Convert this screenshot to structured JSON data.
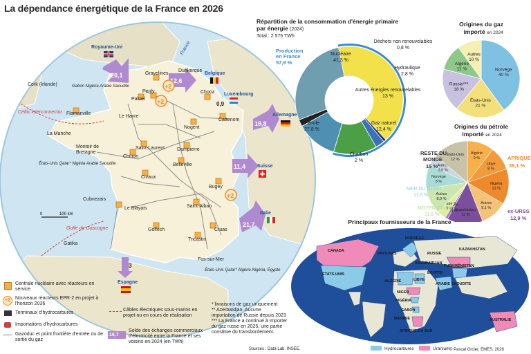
{
  "title": "La dépendance énergétique de la France en 2026",
  "primary": {
    "heading_line1": "Répartition de la consommation d'énergie primaire",
    "heading_line2": "par énergie",
    "year": "(2024)",
    "total": "Total : 2 575 TWh",
    "production_label_1": "Production",
    "production_label_2": "en France",
    "production_value": "57,9 %"
  },
  "chart_data": [
    {
      "type": "pie",
      "title": "Répartition de la consommation d'énergie primaire par énergie (2024)",
      "labels": [
        "Nucléaire",
        "Déchets non renouvelables",
        "Hydraulique",
        "Autres énergies renouvelables",
        "Gaz naturel",
        "Charbon",
        "Pétrole"
      ],
      "values": [
        41.3,
        0.8,
        2.8,
        13,
        12.4,
        2,
        27.8
      ],
      "value_labels": [
        "41,3 %",
        "0,8 %",
        "2,8 %",
        "13 %",
        "12,4 %",
        "2 %",
        "27,8 %"
      ],
      "colors": [
        "#f2e14a",
        "#1f2f6e",
        "#3a72b8",
        "#4c9f45",
        "#4f90b2",
        "#222222",
        "#6f9eb0"
      ]
    },
    {
      "type": "pie",
      "title": "Origines du gaz importé en 2024",
      "labels": [
        "Norvège",
        "États-Unis",
        "Russie***",
        "Algérie",
        "Autres"
      ],
      "values": [
        40,
        21,
        18,
        11,
        10
      ],
      "value_labels": [
        "40 %",
        "21 %",
        "18 %",
        "11 %",
        "10 %"
      ],
      "colors": [
        "#7fc1e2",
        "#f4e07a",
        "#c8c1e0",
        "#8fc98a",
        "#f6efb2"
      ]
    },
    {
      "type": "pie",
      "title": "Origines du pétrole importé en 2024",
      "labels": [
        "Algérie",
        "Libye",
        "Nigéria",
        "Autres",
        "Kazakhstan",
        "Azerbaïdjan**",
        "Arabie S.",
        "Autres",
        "Norvège",
        "Autres",
        "États-Unis"
      ],
      "values": [
        9,
        8,
        12,
        9.1,
        12,
        0.9,
        3,
        8.9,
        8,
        3.6,
        12
      ],
      "value_labels": [
        "9 %",
        "8 %",
        "12 %",
        "9,1 %",
        "12 %",
        "0,9 %",
        "3 %",
        "8,9 %",
        "8 %",
        "3,6 %",
        "12 %"
      ],
      "colors": [
        "#f7b04a",
        "#f39a3a",
        "#ee8a2c",
        "#f5c27a",
        "#7a4f9e",
        "#a27cc4",
        "#dcef9c",
        "#cbe6b0",
        "#a9dcd4",
        "#c9d6e2",
        "#c7c2a8"
      ]
    }
  ],
  "gas": {
    "heading_1": "Origines du gaz",
    "heading_2": "importé",
    "year": "en 2024"
  },
  "oil": {
    "heading_1": "Origines du pétrole",
    "heading_2": "importé",
    "year": "en 2024",
    "reste_1": "RESTE DU",
    "reste_2": "MONDE",
    "reste_val": "15 %",
    "afrique": "AFRIQUE",
    "afrique_val": "38,1 %",
    "mer_du_nord": "MER DU NORD",
    "mer_du_nord_val": "11,6 %",
    "moyen_orient": "MOYEN-ORIENT",
    "moyen_orient_val": "11,9 %",
    "ex_urss": "ex-URSS",
    "ex_urss_val": "12,9 %",
    "labels": [
      "Algérie",
      "Libye",
      "Nigéria",
      "Autres",
      "Kazakhstan",
      "Azer.**",
      "Arabie S.",
      "Autres",
      "Norvège",
      "Autres",
      "États-Unis"
    ]
  },
  "map": {
    "countries": [
      "Royaume-Uni",
      "Belgique",
      "Luxembourg",
      "Allemagne",
      "Suisse",
      "Italie",
      "Espagne"
    ],
    "flows": [
      {
        "value": "20,1",
        "color": "#b08ad0"
      },
      {
        "value": "12,6",
        "color": "#b08ad0"
      },
      {
        "value": "0,9",
        "color": "#b08ad0"
      },
      {
        "value": "19,8",
        "color": "#b08ad0"
      },
      {
        "value": "11,4",
        "color": "#b08ad0"
      },
      {
        "value": "21,7",
        "color": "#b08ad0"
      },
      {
        "value": "3",
        "color": "#b08ad0"
      }
    ],
    "new_reactors": [
      "+2",
      "+2",
      "+2"
    ],
    "plants": [
      "Gravelines",
      "Penly",
      "Paluel",
      "Flamanville",
      "Chooz",
      "Cattenom",
      "Nogent",
      "Saint-Laurent",
      "Dampierre",
      "Chinon",
      "Belleville",
      "Civaux",
      "Bugey",
      "Saint-Alban",
      "Le Blayais",
      "Golfech",
      "Cruas",
      "Tricastin"
    ],
    "terminals": [
      "Dunkerque",
      "Le Havre",
      "Montoir de Bretagne",
      "Fos-sur-Mer"
    ],
    "places": [
      "La Manche",
      "Cork (Irlande)",
      "Celtic interconnector",
      "Golfe de Gascogne",
      "Gatika",
      "Cubnezais",
      "France"
    ],
    "lng_notes": {
      "north": "Gabon Nigéria Arabie Saoudite",
      "west": "États-Unis Qatar* Nigéria Arabie Saoudite",
      "south": "États-Unis Qatar* Algérie Nigéria, Égypte"
    },
    "scale_0": "0",
    "scale_100": "100 km"
  },
  "legend": [
    "Centrale nucléaire avec réacteurs en service",
    "Nouveaux réacteurs EPR-2 en projet à l'horizon 2036",
    "Terminaux d'hydrocarbures",
    "Importations d'hydrocarbures",
    "Gazoduc et point frontière d'entrée ou de sortie du gaz",
    "Câbles électriques sous-marins en projet ou en cours de réalisation",
    "Solde des échanges commerciaux d'électricité entre la France et ses voisins en 2024 (en TWh)"
  ],
  "legend_plus": "+2",
  "legend_flow": "16,7",
  "notes": {
    "n1": "* livraisons de gaz uniquement",
    "n2": "** Azerbaïdjan. Aucune",
    "n3": "importation de Russie depuis 2023",
    "n4": "*** La France a continué à importer",
    "n5": "du gaz russe en 2025, une partie",
    "n6": "constitue du transbordement."
  },
  "sources": "Sources : Data Lab, INSEE.",
  "credit": "© Pascal Orcier, EMES, 2026",
  "world": {
    "heading": "Principaux fournisseurs de la France",
    "countries": [
      "CANADA",
      "ÉTATS-UNIS",
      "PAYS-BAS",
      "NORVÈGE",
      "KAZAKHSTAN",
      "AZERBAÏDJAN",
      "RUSSIE",
      "TURKMÉNISTAN",
      "ALGÉRIE",
      "LIBYE",
      "ÉGYPTE",
      "ARABIE SAOUDITE",
      "NIGER",
      "NIGÉRIA",
      "GABON",
      "NAMIBIE",
      "AFRIQUE DU SUD",
      "AUSTRALIE"
    ],
    "legend_hc": "Hydrocarbures",
    "legend_u": "Uranium"
  }
}
